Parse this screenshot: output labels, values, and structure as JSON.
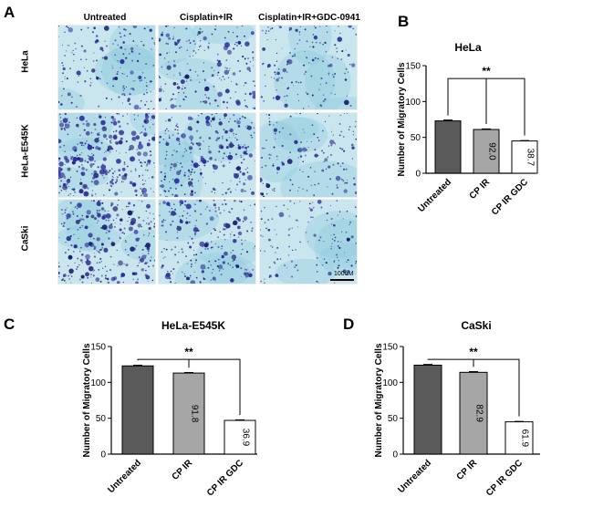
{
  "panels": {
    "a": "A",
    "b": "B",
    "c": "C",
    "d": "D"
  },
  "micrograph": {
    "columns": [
      "Untreated",
      "Cisplatin+IR",
      "Cisplatin+IR+GDC-0941"
    ],
    "rows": [
      "HeLa",
      "HeLa-E545K",
      "CaSki"
    ],
    "scale_bar": "100uM",
    "colors": {
      "background": "#c9e6ee",
      "wash": "#8cc8dd",
      "cell": "#2d2f9c",
      "cell_dark": "#1b1e70"
    },
    "density": [
      [
        0.45,
        0.55,
        0.35
      ],
      [
        1.0,
        0.8,
        0.35
      ],
      [
        0.85,
        0.7,
        0.3
      ]
    ]
  },
  "chart_data": [
    {
      "type": "bar",
      "title": "HeLa",
      "ylabel": "Number of  Migratory Cells",
      "categories": [
        "Untreated",
        "CP IR",
        "CP IR GDC"
      ],
      "values": [
        73,
        61,
        45
      ],
      "errors": [
        1.2,
        0.8,
        0.6
      ],
      "bar_labels": [
        "",
        "92.0",
        "38.7"
      ],
      "colors": [
        "#5a5a5a",
        "#a6a6a6",
        "#ffffff"
      ],
      "ylim": [
        0,
        150
      ],
      "yticks": [
        0,
        50,
        100,
        150
      ],
      "significance": "**"
    },
    {
      "type": "bar",
      "title": "HeLa-E545K",
      "ylabel": "Number of  Migratory Cells",
      "categories": [
        "Untreated",
        "CP IR",
        "CP IR GDC"
      ],
      "values": [
        123,
        113,
        47
      ],
      "errors": [
        1.0,
        0.8,
        0.8
      ],
      "bar_labels": [
        "",
        "91.8",
        "36.9"
      ],
      "colors": [
        "#5a5a5a",
        "#a6a6a6",
        "#ffffff"
      ],
      "ylim": [
        0,
        150
      ],
      "yticks": [
        0,
        50,
        100,
        150
      ],
      "significance": "**"
    },
    {
      "type": "bar",
      "title": "CaSki",
      "ylabel": "Number of  Migratory Cells",
      "categories": [
        "Untreated",
        "CP IR",
        "CP IR GDC"
      ],
      "values": [
        124,
        114,
        45
      ],
      "errors": [
        1.0,
        1.0,
        0.6
      ],
      "bar_labels": [
        "",
        "82.9",
        "61.9"
      ],
      "colors": [
        "#5a5a5a",
        "#a6a6a6",
        "#ffffff"
      ],
      "ylim": [
        0,
        150
      ],
      "yticks": [
        0,
        50,
        100,
        150
      ],
      "significance": "**"
    }
  ]
}
